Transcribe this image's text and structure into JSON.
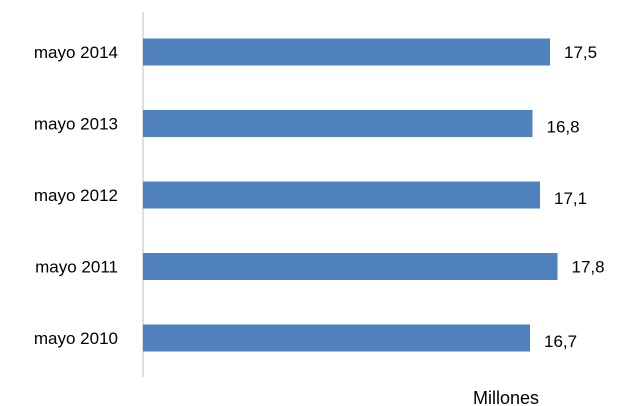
{
  "chart_data": {
    "type": "bar",
    "orientation": "horizontal",
    "categories": [
      "mayo 2014",
      "mayo 2013",
      "mayo 2012",
      "mayo 2011",
      "mayo 2010"
    ],
    "values": [
      17.5,
      16.8,
      17.1,
      17.8,
      16.7
    ],
    "value_labels": [
      "17,5",
      "16,8",
      "17,1",
      "17,8",
      "16,7"
    ],
    "title": "",
    "xlabel": "Millones",
    "ylabel": "",
    "grid": false,
    "legend": "none",
    "bar_color": "#4F81BD"
  }
}
